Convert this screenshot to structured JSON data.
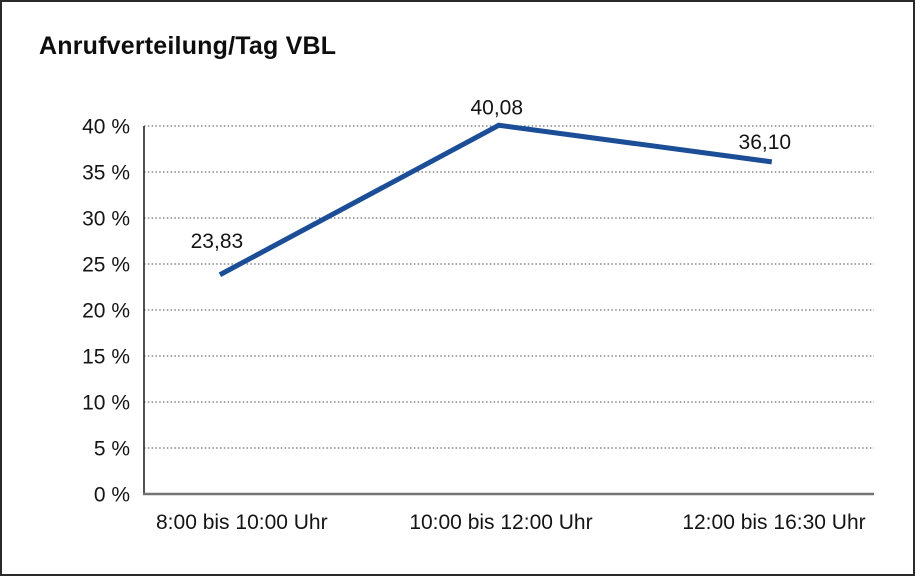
{
  "window": {
    "title": "Anrufverteilung/Tag VBL"
  },
  "colors": {
    "series_line": "#1b4e96",
    "grid": "#6e6e6e",
    "y_axis": "#262626",
    "x_axis": "#737373",
    "text": "#141414",
    "frame_border": "#2a2a2a",
    "background": "#ffffff"
  },
  "chart_data": {
    "type": "line",
    "title": "Anrufverteilung/Tag VBL",
    "categories": [
      "8:00 bis 10:00 Uhr",
      "10:00 bis 12:00 Uhr",
      "12:00 bis 16:30 Uhr"
    ],
    "values": [
      23.83,
      40.08,
      36.1
    ],
    "value_labels": [
      "23,83",
      "40,08",
      "36,10"
    ],
    "xlabel": "",
    "ylabel": "",
    "ylim": [
      0,
      40
    ],
    "ytick_step": 5,
    "ytick_labels": [
      "0 %",
      "5 %",
      "10 %",
      "15 %",
      "20 %",
      "25 %",
      "30 %",
      "35 %",
      "40 %"
    ],
    "grid": "horizontal-dotted",
    "legend": "none",
    "markers": "none",
    "decimal_separator": ","
  }
}
